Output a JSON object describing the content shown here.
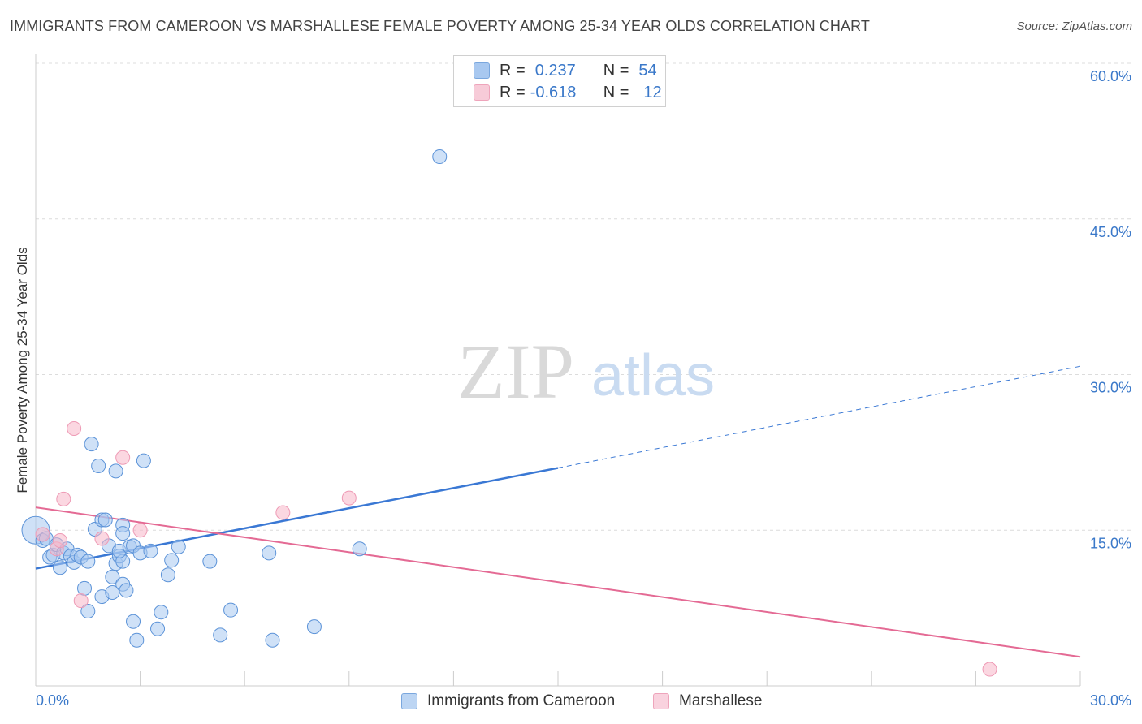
{
  "header": {
    "title": "IMMIGRANTS FROM CAMEROON VS MARSHALLESE FEMALE POVERTY AMONG 25-34 YEAR OLDS CORRELATION CHART",
    "source": "Source: ZipAtlas.com"
  },
  "watermark": {
    "zip": "ZIP",
    "atlas": "atlas"
  },
  "legend": {
    "series1": {
      "r_label": "R =",
      "r_value": "0.237",
      "n_label": "N =",
      "n_value": "54",
      "color": "#a8c8f0"
    },
    "series2": {
      "r_label": "R =",
      "r_value": "-0.618",
      "n_label": "N =",
      "n_value": "12",
      "color": "#f7b6c8"
    }
  },
  "bottom_legend": {
    "item1": "Immigrants from Cameroon",
    "item2": "Marshallese"
  },
  "chart_data": {
    "type": "scatter",
    "xlabel": "",
    "ylabel": "Female Poverty Among 25-34 Year Olds",
    "xlim": [
      0,
      30
    ],
    "ylim": [
      0,
      60
    ],
    "x_tick_labels": [
      "0.0%",
      "30.0%"
    ],
    "y_tick_labels": [
      "15.0%",
      "30.0%",
      "45.0%",
      "60.0%"
    ],
    "y_ticks": [
      15,
      30,
      45,
      60
    ],
    "grid": true,
    "series": [
      {
        "name": "Immigrants from Cameroon",
        "color": "#3a78d4",
        "fill": "#a8c8f0",
        "points": [
          [
            0.0,
            15.0
          ],
          [
            0.2,
            14.0
          ],
          [
            0.3,
            14.2
          ],
          [
            0.4,
            12.4
          ],
          [
            0.5,
            12.6
          ],
          [
            0.6,
            13.6
          ],
          [
            0.7,
            11.4
          ],
          [
            0.8,
            12.8
          ],
          [
            0.9,
            13.2
          ],
          [
            1.0,
            12.5
          ],
          [
            1.1,
            11.9
          ],
          [
            1.2,
            12.6
          ],
          [
            1.3,
            12.4
          ],
          [
            1.4,
            9.4
          ],
          [
            1.5,
            12.0
          ],
          [
            1.5,
            7.2
          ],
          [
            1.6,
            23.3
          ],
          [
            1.7,
            15.1
          ],
          [
            1.8,
            21.2
          ],
          [
            1.9,
            8.6
          ],
          [
            1.9,
            16.0
          ],
          [
            2.0,
            16.0
          ],
          [
            2.1,
            13.5
          ],
          [
            2.2,
            10.5
          ],
          [
            2.2,
            9.0
          ],
          [
            2.3,
            11.8
          ],
          [
            2.3,
            20.7
          ],
          [
            2.5,
            9.8
          ],
          [
            2.4,
            12.5
          ],
          [
            2.5,
            12.0
          ],
          [
            2.4,
            13.0
          ],
          [
            2.5,
            15.5
          ],
          [
            2.5,
            14.7
          ],
          [
            2.6,
            9.2
          ],
          [
            2.7,
            13.4
          ],
          [
            2.8,
            6.2
          ],
          [
            2.8,
            13.5
          ],
          [
            2.9,
            4.4
          ],
          [
            3.0,
            12.8
          ],
          [
            3.1,
            21.7
          ],
          [
            3.3,
            13.0
          ],
          [
            3.5,
            5.5
          ],
          [
            3.6,
            7.1
          ],
          [
            3.8,
            10.7
          ],
          [
            3.9,
            12.1
          ],
          [
            4.1,
            13.4
          ],
          [
            5.0,
            12.0
          ],
          [
            5.3,
            4.9
          ],
          [
            5.6,
            7.3
          ],
          [
            6.7,
            12.8
          ],
          [
            6.8,
            4.4
          ],
          [
            8.0,
            5.7
          ],
          [
            9.3,
            13.2
          ],
          [
            11.6,
            51.0
          ]
        ],
        "trend": {
          "x_start": 0,
          "y_start": 11.3,
          "x_solid_end": 15.0,
          "y_solid_end": 21.0,
          "x_end": 30,
          "y_end": 30.8
        }
      },
      {
        "name": "Marshallese",
        "color": "#e46a94",
        "fill": "#f7b6c8",
        "points": [
          [
            0.2,
            14.6
          ],
          [
            0.6,
            13.2
          ],
          [
            0.7,
            14.0
          ],
          [
            0.8,
            18.0
          ],
          [
            1.1,
            24.8
          ],
          [
            1.3,
            8.2
          ],
          [
            1.9,
            14.2
          ],
          [
            2.5,
            22.0
          ],
          [
            3.0,
            15.0
          ],
          [
            7.1,
            16.7
          ],
          [
            9.0,
            18.1
          ],
          [
            27.4,
            1.6
          ]
        ],
        "trend": {
          "x_start": 0,
          "y_start": 17.2,
          "x_end": 30,
          "y_end": 2.8
        }
      }
    ]
  }
}
